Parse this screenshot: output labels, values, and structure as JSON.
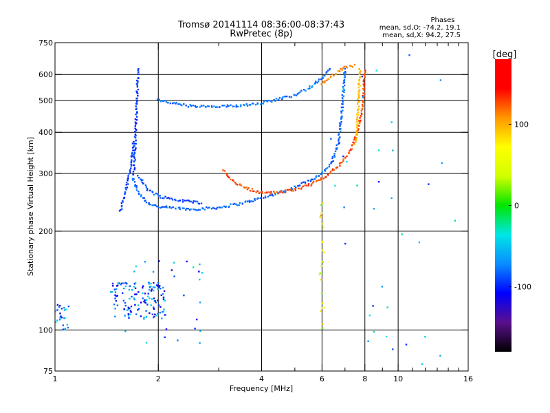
{
  "chart_data": {
    "type": "scatter",
    "title": "Tromsø 20141114 08:36:00-08:37:43",
    "subtitle": "RwPretec (8p)",
    "xlabel": "Frequency [MHz]",
    "ylabel": "Stationary phase Virtual Height [km]",
    "x_scale": "log",
    "y_scale": "log",
    "xlim": [
      1,
      16
    ],
    "ylim": [
      75,
      750
    ],
    "x_ticks": [
      {
        "value": 1,
        "label": "1"
      },
      {
        "value": 2,
        "label": "2"
      },
      {
        "value": 4,
        "label": "4"
      },
      {
        "value": 6,
        "label": "6"
      },
      {
        "value": 8,
        "label": "8"
      },
      {
        "value": 10,
        "label": "10"
      },
      {
        "value": 16,
        "label": "16"
      }
    ],
    "x_minor_ticks": [
      3,
      5,
      7,
      9,
      11,
      12,
      13,
      14,
      15
    ],
    "x_gridlines": [
      2,
      4,
      6,
      8,
      10
    ],
    "y_ticks": [
      {
        "value": 75,
        "label": "75"
      },
      {
        "value": 100,
        "label": "100"
      },
      {
        "value": 200,
        "label": "200"
      },
      {
        "value": 300,
        "label": "300"
      },
      {
        "value": 400,
        "label": "400"
      },
      {
        "value": 500,
        "label": "500"
      },
      {
        "value": 600,
        "label": "600"
      },
      {
        "value": 750,
        "label": "750"
      }
    ],
    "y_gridlines": [
      100,
      200,
      300,
      400,
      500,
      600
    ],
    "grid": true,
    "stats": {
      "heading": "Phases",
      "line_o": "mean, sd,O: -74.2, 19.1",
      "line_x": "mean, sd,X:  94.2, 27.5"
    },
    "colorbar": {
      "label": "[deg]",
      "range": [
        -180,
        180
      ],
      "ticks": [
        {
          "value": 100,
          "label": "100"
        },
        {
          "value": 0,
          "label": "0"
        },
        {
          "value": -100,
          "label": "-100"
        }
      ],
      "stops": [
        "#000000",
        "#5a0f8c",
        "#0000ff",
        "#0a8cff",
        "#00e6e6",
        "#00e600",
        "#d2ff00",
        "#ffff00",
        "#ff9600",
        "#ff0000",
        "#ff0000"
      ]
    },
    "segments": [
      {
        "name": "O-mode F-trace lower",
        "phase": -82,
        "points": [
          [
            1.68,
            290
          ],
          [
            1.75,
            262
          ],
          [
            1.85,
            245
          ],
          [
            2.0,
            237
          ],
          [
            2.5,
            233
          ],
          [
            3.0,
            236
          ],
          [
            3.5,
            243
          ],
          [
            4.0,
            252
          ],
          [
            4.5,
            262
          ],
          [
            5.0,
            272
          ],
          [
            5.5,
            285
          ],
          [
            6.0,
            300
          ],
          [
            6.4,
            322
          ],
          [
            6.7,
            370
          ],
          [
            6.85,
            460
          ],
          [
            6.95,
            560
          ],
          [
            7.0,
            630
          ]
        ]
      },
      {
        "name": "O-mode F-trace upper",
        "phase": -88,
        "points": [
          [
            1.75,
            295
          ],
          [
            1.85,
            270
          ],
          [
            2.0,
            256
          ],
          [
            2.3,
            248
          ],
          [
            2.7,
            244
          ]
        ]
      },
      {
        "name": "O-mode cusp",
        "phase": -95,
        "points": [
          [
            1.7,
            300
          ],
          [
            1.72,
            400
          ],
          [
            1.73,
            500
          ],
          [
            1.74,
            560
          ],
          [
            1.75,
            630
          ]
        ]
      },
      {
        "name": "O-mode F2 high trace",
        "phase": -78,
        "points": [
          [
            2.0,
            500
          ],
          [
            2.5,
            480
          ],
          [
            3.0,
            478
          ],
          [
            3.5,
            483
          ],
          [
            4.0,
            492
          ],
          [
            4.5,
            505
          ],
          [
            5.0,
            520
          ],
          [
            5.5,
            545
          ],
          [
            6.0,
            585
          ],
          [
            6.4,
            625
          ]
        ]
      },
      {
        "name": "O-mode steep descent",
        "phase": -92,
        "points": [
          [
            1.55,
            230
          ],
          [
            1.58,
            250
          ],
          [
            1.62,
            275
          ],
          [
            1.66,
            310
          ],
          [
            1.7,
            380
          ]
        ]
      },
      {
        "name": "X-mode trace",
        "phase": 128,
        "points": [
          [
            3.1,
            305
          ],
          [
            3.3,
            285
          ],
          [
            3.6,
            270
          ],
          [
            4.0,
            262
          ],
          [
            4.5,
            262
          ],
          [
            5.0,
            268
          ],
          [
            5.5,
            276
          ],
          [
            6.0,
            290
          ],
          [
            6.6,
            310
          ],
          [
            7.2,
            345
          ],
          [
            7.6,
            400
          ],
          [
            7.85,
            470
          ],
          [
            7.95,
            540
          ],
          [
            8.0,
            620
          ]
        ]
      },
      {
        "name": "X-mode cusp",
        "phase": 95,
        "points": [
          [
            7.5,
            370
          ],
          [
            7.6,
            420
          ],
          [
            7.65,
            480
          ],
          [
            7.7,
            560
          ],
          [
            7.75,
            630
          ]
        ]
      },
      {
        "name": "X-mode upper",
        "phase": 110,
        "points": [
          [
            6.0,
            560
          ],
          [
            6.5,
            600
          ],
          [
            7.0,
            630
          ],
          [
            7.5,
            640
          ]
        ]
      }
    ],
    "clusters": [
      {
        "name": "E-region echoes",
        "phase": -85,
        "x": [
          1.45,
          2.1
        ],
        "y": [
          108,
          140
        ],
        "count": 140
      },
      {
        "name": "low-frequency echoes",
        "phase": -75,
        "x": [
          1.0,
          1.1
        ],
        "y": [
          100,
          120
        ],
        "count": 25
      },
      {
        "name": "scattered low echoes",
        "phase": -70,
        "x": [
          1.6,
          2.7
        ],
        "y": [
          85,
          165
        ],
        "count": 26
      },
      {
        "name": "vertical echo column",
        "phase": 60,
        "x": [
          5.9,
          6.1
        ],
        "y": [
          100,
          250
        ],
        "count": 24
      },
      {
        "name": "sparse high-frequency echoes",
        "phase": -60,
        "x": [
          6.0,
          15.0
        ],
        "y": [
          78,
          700
        ],
        "count": 36
      }
    ]
  }
}
